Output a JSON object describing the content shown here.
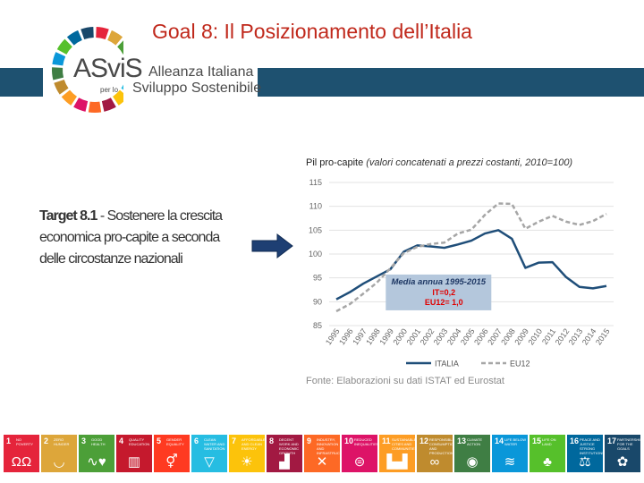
{
  "slide": {
    "title": "Goal 8: Il Posizionamento dell’Italia",
    "target_bold": "Target 8.1",
    "target_text": " - Sostenere la crescita economica pro-capite a seconda delle circostanze nazionali",
    "source": "Fonte: Elaborazioni su dati ISTAT ed Eurostat"
  },
  "logo": {
    "brand": "ASviS",
    "line1": "Alleanza Italiana",
    "line2_prefix": "per lo",
    "line2": "Sviluppo Sostenibile"
  },
  "colors": {
    "title_red": "#c0281b",
    "band_blue": "#1e5170",
    "italia_line": "#1f4e79",
    "eu12_line": "#a6a6a6",
    "box_fill": "#b4c7dc",
    "box_text_red": "#e00000"
  },
  "chart_data": {
    "type": "line",
    "title": "Pil pro-capite",
    "subtitle": "(valori concatenati a prezzi costanti, 2010=100)",
    "x": [
      "1995",
      "1996",
      "1997",
      "1998",
      "1999",
      "2000",
      "2001",
      "2002",
      "2003",
      "2004",
      "2005",
      "2006",
      "2007",
      "2008",
      "2009",
      "2010",
      "2011",
      "2012",
      "2013",
      "2014",
      "2015"
    ],
    "ylim": [
      85,
      115
    ],
    "yticks": [
      85,
      90,
      95,
      100,
      105,
      110,
      115
    ],
    "grid": true,
    "legend_position": "bottom",
    "series": [
      {
        "name": "ITALIA",
        "style": "solid",
        "values": [
          90.5,
          92,
          93.8,
          95.3,
          96.8,
          100.5,
          101.8,
          101.6,
          101.3,
          102,
          102.8,
          104.3,
          105,
          103.2,
          97.1,
          98.2,
          98.3,
          95.2,
          93.1,
          92.8,
          93.3
        ]
      },
      {
        "name": "EU12",
        "style": "dashed",
        "values": [
          88,
          89.5,
          91.7,
          94,
          97,
          100.2,
          101.5,
          102.1,
          102.4,
          104.3,
          105.1,
          108.2,
          110.6,
          110.5,
          105.3,
          106.8,
          108,
          106.8,
          106.1,
          106.9,
          108.4
        ]
      }
    ],
    "annotation": {
      "title": "Media annua 1995-2015",
      "lines": [
        "IT=0,2",
        "EU12= 1,0"
      ]
    }
  },
  "sdg_goals": [
    {
      "num": "1",
      "label": "NO POVERTY",
      "color": "#e5243b",
      "icon": "people-icon",
      "glyph": "ΩΩ"
    },
    {
      "num": "2",
      "label": "ZERO HUNGER",
      "color": "#dda63a",
      "icon": "bowl-icon",
      "glyph": "◡"
    },
    {
      "num": "3",
      "label": "GOOD HEALTH",
      "color": "#4c9f38",
      "icon": "heartbeat-icon",
      "glyph": "∿♥"
    },
    {
      "num": "4",
      "label": "QUALITY EDUCATION",
      "color": "#c5192d",
      "icon": "book-icon",
      "glyph": "▥"
    },
    {
      "num": "5",
      "label": "GENDER EQUALITY",
      "color": "#ff3a21",
      "icon": "gender-icon",
      "glyph": "⚥"
    },
    {
      "num": "6",
      "label": "CLEAN WATER AND SANITATION",
      "color": "#26bde2",
      "icon": "water-icon",
      "glyph": "▽"
    },
    {
      "num": "7",
      "label": "AFFORDABLE AND CLEAN ENERGY",
      "color": "#fcc30b",
      "icon": "sun-icon",
      "glyph": "☀"
    },
    {
      "num": "8",
      "label": "DECENT WORK AND ECONOMIC GROWTH",
      "color": "#a21942",
      "icon": "growth-chart-icon",
      "glyph": "▟"
    },
    {
      "num": "9",
      "label": "INDUSTRY, INNOVATION AND INFRASTRUCTURE",
      "color": "#fd6925",
      "icon": "cubes-icon",
      "glyph": "✕"
    },
    {
      "num": "10",
      "label": "REDUCED INEQUALITIES",
      "color": "#dd1367",
      "icon": "equals-icon",
      "glyph": "⊜"
    },
    {
      "num": "11",
      "label": "SUSTAINABLE CITIES AND COMMUNITIES",
      "color": "#fd9d24",
      "icon": "city-icon",
      "glyph": "▙▟"
    },
    {
      "num": "12",
      "label": "RESPONSIBLE CONSUMPTION AND PRODUCTION",
      "color": "#bf8b2e",
      "icon": "infinity-icon",
      "glyph": "∞"
    },
    {
      "num": "13",
      "label": "CLIMATE ACTION",
      "color": "#3f7e44",
      "icon": "eye-globe-icon",
      "glyph": "◉"
    },
    {
      "num": "14",
      "label": "LIFE BELOW WATER",
      "color": "#0a97d9",
      "icon": "fish-icon",
      "glyph": "≋"
    },
    {
      "num": "15",
      "label": "LIFE ON LAND",
      "color": "#56c02b",
      "icon": "tree-icon",
      "glyph": "♣"
    },
    {
      "num": "16",
      "label": "PEACE AND JUSTICE STRONG INSTITUTIONS",
      "color": "#00689d",
      "icon": "dove-icon",
      "glyph": "⚖"
    },
    {
      "num": "17",
      "label": "PARTNERSHIPS FOR THE GOALS",
      "color": "#19486a",
      "icon": "rings-icon",
      "glyph": "✿"
    }
  ]
}
